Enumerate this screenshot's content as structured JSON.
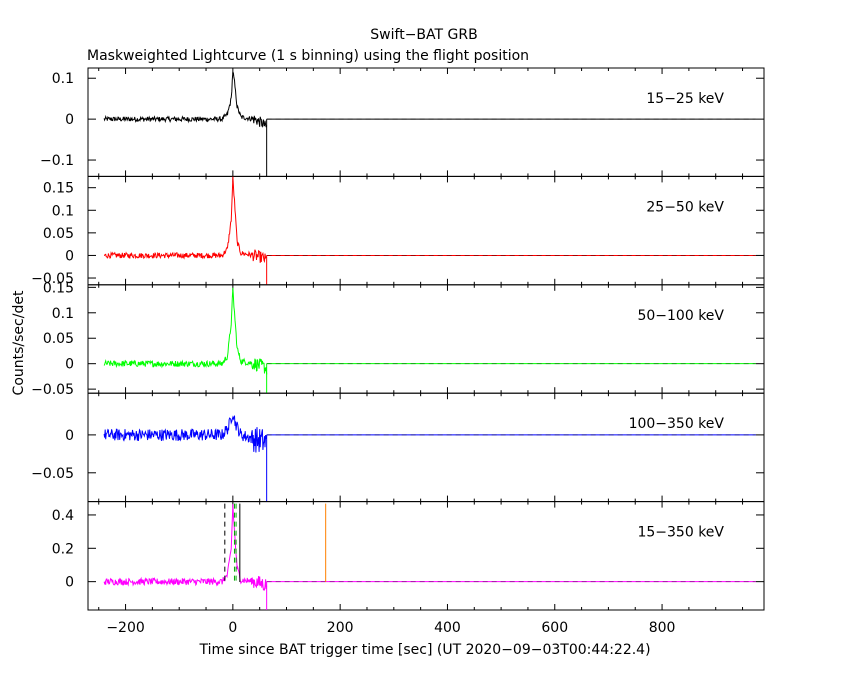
{
  "chart_data": {
    "type": "line",
    "title": "Swift−BAT GRB",
    "subtitle": "Maskweighted Lightcurve (1 s binning) using the flight position",
    "xlabel": "Time since BAT trigger time [sec] (UT 2020−09−03T00:44:22.4)",
    "ylabel": "Counts/sec/det",
    "xlim": [
      -270,
      990
    ],
    "xticks": [
      -200,
      0,
      200,
      400,
      600,
      800
    ],
    "xtick_labels": [
      "−200",
      "0",
      "200",
      "400",
      "600",
      "800"
    ],
    "grid": false,
    "panels": [
      {
        "name": "15−25 keV",
        "color": "#000000",
        "ylim": [
          -0.14,
          0.125
        ],
        "yticks": [
          0.1,
          0,
          -0.1
        ],
        "ytick_labels": [
          "0.1",
          "0",
          "−0.1"
        ],
        "noise": 0.006,
        "series": [
          {
            "x": -240,
            "y": 0.0
          },
          {
            "x": -20,
            "y": 0.0
          },
          {
            "x": -10,
            "y": 0.012
          },
          {
            "x": -3,
            "y": 0.05
          },
          {
            "x": 0,
            "y": 0.118
          },
          {
            "x": 3,
            "y": 0.09
          },
          {
            "x": 8,
            "y": 0.03
          },
          {
            "x": 15,
            "y": 0.005
          },
          {
            "x": 40,
            "y": 0.0
          },
          {
            "x": 55,
            "y": -0.01
          },
          {
            "x": 63,
            "y": -0.02
          }
        ],
        "tail": {
          "from": 63,
          "to": 975,
          "y": 0
        }
      },
      {
        "name": "25−50 keV",
        "color": "#ff0000",
        "ylim": [
          -0.065,
          0.175
        ],
        "yticks": [
          0.15,
          0.1,
          0.05,
          0,
          -0.05
        ],
        "ytick_labels": [
          "0.15",
          "0.1",
          "0.05",
          "0",
          "−0.05"
        ],
        "noise": 0.006,
        "series": [
          {
            "x": -240,
            "y": 0.0
          },
          {
            "x": -20,
            "y": 0.0
          },
          {
            "x": -10,
            "y": 0.015
          },
          {
            "x": -3,
            "y": 0.08
          },
          {
            "x": 0,
            "y": 0.17
          },
          {
            "x": 3,
            "y": 0.12
          },
          {
            "x": 8,
            "y": 0.03
          },
          {
            "x": 15,
            "y": 0.005
          },
          {
            "x": 40,
            "y": 0.0
          },
          {
            "x": 55,
            "y": -0.005
          },
          {
            "x": 63,
            "y": -0.01
          }
        ],
        "tail": {
          "from": 63,
          "to": 975,
          "y": 0
        }
      },
      {
        "name": "50−100 keV",
        "color": "#00ff00",
        "ylim": [
          -0.058,
          0.155
        ],
        "yticks": [
          0.15,
          0.1,
          0.05,
          0,
          -0.05
        ],
        "ytick_labels": [
          "0.15",
          "0.1",
          "0.05",
          "0",
          "−0.05"
        ],
        "noise": 0.006,
        "series": [
          {
            "x": -240,
            "y": 0.0
          },
          {
            "x": -20,
            "y": 0.0
          },
          {
            "x": -10,
            "y": 0.015
          },
          {
            "x": -3,
            "y": 0.08
          },
          {
            "x": 0,
            "y": 0.145
          },
          {
            "x": 3,
            "y": 0.1
          },
          {
            "x": 8,
            "y": 0.03
          },
          {
            "x": 15,
            "y": 0.005
          },
          {
            "x": 40,
            "y": 0.0
          },
          {
            "x": 55,
            "y": -0.005
          },
          {
            "x": 63,
            "y": -0.01
          }
        ],
        "tail": {
          "from": 63,
          "to": 975,
          "y": 0
        }
      },
      {
        "name": "100−350 keV",
        "color": "#0000ff",
        "ylim": [
          -0.088,
          0.055
        ],
        "yticks": [
          0,
          -0.05
        ],
        "ytick_labels": [
          "0",
          "−0.05"
        ],
        "noise": 0.008,
        "series": [
          {
            "x": -240,
            "y": 0.0
          },
          {
            "x": -20,
            "y": 0.0
          },
          {
            "x": -8,
            "y": 0.01
          },
          {
            "x": 0,
            "y": 0.03
          },
          {
            "x": 5,
            "y": 0.015
          },
          {
            "x": 15,
            "y": 0.0
          },
          {
            "x": 63,
            "y": -0.01
          }
        ],
        "tail": {
          "from": 63,
          "to": 975,
          "y": 0
        }
      },
      {
        "name": "15−350 keV",
        "color": "#ff00ff",
        "ylim": [
          -0.17,
          0.48
        ],
        "yticks": [
          0.4,
          0.2,
          0
        ],
        "ytick_labels": [
          "0.4",
          "0.2",
          "0"
        ],
        "noise": 0.02,
        "series": [
          {
            "x": -240,
            "y": 0.0
          },
          {
            "x": -20,
            "y": 0.0
          },
          {
            "x": -10,
            "y": 0.04
          },
          {
            "x": -3,
            "y": 0.2
          },
          {
            "x": 0,
            "y": 0.46
          },
          {
            "x": 3,
            "y": 0.3
          },
          {
            "x": 8,
            "y": 0.08
          },
          {
            "x": 15,
            "y": 0.01
          },
          {
            "x": 40,
            "y": 0.0
          },
          {
            "x": 63,
            "y": -0.02
          }
        ],
        "tail": {
          "from": 63,
          "to": 975,
          "y": 0
        },
        "vlines": [
          {
            "x": -15,
            "style": "dashed",
            "color": "#000000"
          },
          {
            "x": 3,
            "style": "dashed",
            "color": "#00aa00"
          },
          {
            "x": 6,
            "style": "dashed",
            "color": "#00aa00"
          },
          {
            "x": 13,
            "style": "solid",
            "color": "#000000"
          },
          {
            "x": 173,
            "style": "solid",
            "color": "#ff8000"
          }
        ]
      }
    ]
  }
}
